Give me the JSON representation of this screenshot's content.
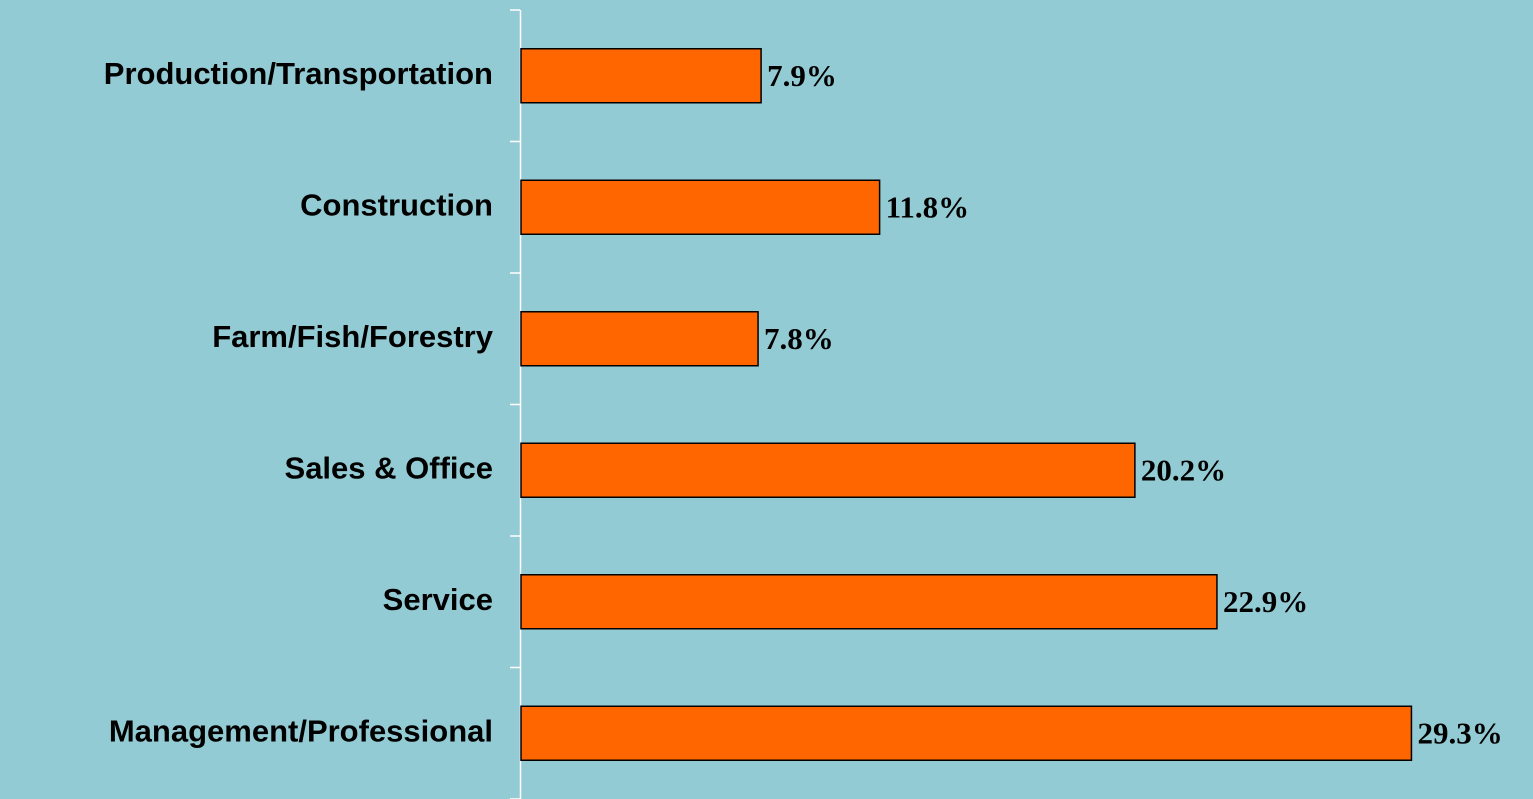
{
  "chart_data": {
    "type": "bar",
    "orientation": "horizontal",
    "categories": [
      "Production/Transportation",
      "Construction",
      "Farm/Fish/Forestry",
      "Sales & Office",
      "Service",
      "Management/Professional"
    ],
    "values": [
      7.9,
      11.8,
      7.8,
      20.2,
      22.9,
      29.3
    ],
    "value_labels": [
      "7.9%",
      "11.8%",
      "7.8%",
      "20.2%",
      "22.9%",
      "29.3%"
    ],
    "color": "#ff6600",
    "xlim": [
      0,
      33.3
    ]
  }
}
